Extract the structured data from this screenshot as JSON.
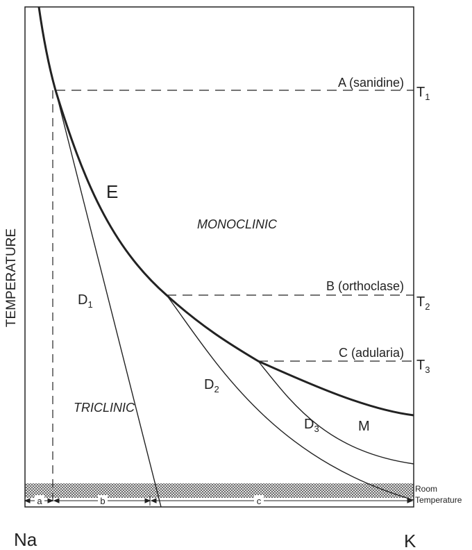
{
  "axes": {
    "y_label": "TEMPERATURE",
    "x_left": "Na",
    "x_right": "K"
  },
  "levels": [
    {
      "label": "A (sanidine)",
      "temp": "T",
      "sub": "1"
    },
    {
      "label": "B (orthoclase)",
      "temp": "T",
      "sub": "2"
    },
    {
      "label": "C (adularia)",
      "temp": "T",
      "sub": "3"
    }
  ],
  "curves": {
    "e": "E",
    "d1": {
      "main": "D",
      "sub": "1"
    },
    "d2": {
      "main": "D",
      "sub": "2"
    },
    "d3": {
      "main": "D",
      "sub": "3"
    },
    "m": "M"
  },
  "fields": {
    "monoclinic": "MONOCLINIC",
    "triclinic": "TRICLINIC"
  },
  "room": {
    "line1": "Room",
    "line2": "Temperature"
  },
  "widths": {
    "a": "a",
    "b": "b",
    "c": "c"
  },
  "colors": {
    "ink": "#222222",
    "background": "#ffffff"
  }
}
